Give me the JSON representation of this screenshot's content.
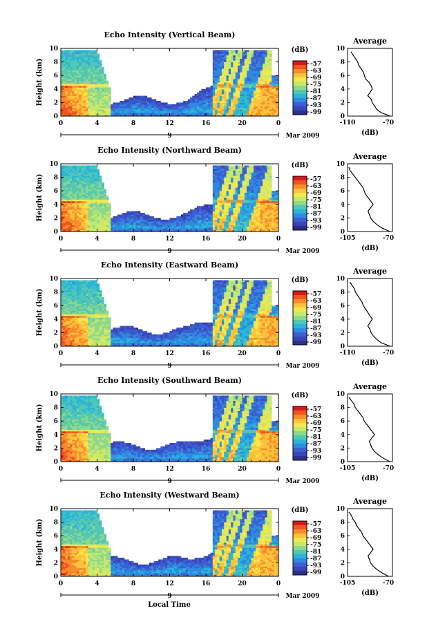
{
  "figure": {
    "xlabel": "Local Time",
    "date_label": "Mar 2009",
    "ylabel": "Height (km)",
    "colorbar_unit": "(dB)",
    "colorbar_ticks": [
      "-57",
      "-63",
      "-69",
      "-75",
      "-81",
      "-87",
      "-93",
      "-99"
    ],
    "avg_title": "Average",
    "avg_xlabel": "(dB)",
    "time_ticks": [
      "0",
      "4",
      "8",
      "12",
      "16",
      "20",
      "0"
    ],
    "height_ticks": [
      "0",
      "2",
      "4",
      "6",
      "8",
      "10"
    ],
    "day_tick": "9"
  },
  "chart_data": [
    {
      "type": "heatmap",
      "title": "Echo Intensity (Vertical Beam)",
      "xlabel": "Local Time",
      "ylabel": "Height (km)",
      "xlim": [
        0,
        24
      ],
      "ylim": [
        0,
        10
      ],
      "colorbar": {
        "label": "(dB)",
        "range": [
          -99,
          -57
        ]
      },
      "avg_profile": {
        "title": "Average",
        "xlabel": "(dB)",
        "xlim": [
          -110,
          -70
        ],
        "xticks": [
          "-110",
          "-70"
        ],
        "height": [
          0,
          0.5,
          1,
          1.5,
          2,
          2.5,
          3,
          3.5,
          4,
          4.5,
          5,
          5.5,
          6,
          6.5,
          7,
          7.5,
          8,
          8.5,
          9,
          9.5
        ],
        "value": [
          -72,
          -80,
          -84,
          -86,
          -88,
          -89,
          -92,
          -90,
          -88,
          -89,
          -91,
          -94,
          -95,
          -96,
          -98,
          -100,
          -101,
          -103,
          -105,
          -107
        ]
      }
    },
    {
      "type": "heatmap",
      "title": "Echo Intensity (Northward Beam)",
      "xlabel": "Local Time",
      "ylabel": "Height (km)",
      "xlim": [
        0,
        24
      ],
      "ylim": [
        0,
        10
      ],
      "colorbar": {
        "label": "(dB)",
        "range": [
          -99,
          -57
        ]
      },
      "avg_profile": {
        "title": "Average",
        "xlabel": "(dB)",
        "xlim": [
          -105,
          -70
        ],
        "xticks": [
          "-105",
          "-70"
        ],
        "height": [
          0,
          0.5,
          1,
          1.5,
          2,
          2.5,
          3,
          3.5,
          4,
          4.5,
          5,
          5.5,
          6,
          6.5,
          7,
          7.5,
          8,
          8.5,
          9,
          9.5
        ],
        "value": [
          -72,
          -78,
          -82,
          -85,
          -87,
          -88,
          -89,
          -87,
          -85,
          -87,
          -89,
          -91,
          -92,
          -93,
          -95,
          -97,
          -99,
          -101,
          -103,
          -104
        ]
      }
    },
    {
      "type": "heatmap",
      "title": "Echo Intensity (Eastward Beam)",
      "xlabel": "Local Time",
      "ylabel": "Height (km)",
      "xlim": [
        0,
        24
      ],
      "ylim": [
        0,
        10
      ],
      "colorbar": {
        "label": "(dB)",
        "range": [
          -99,
          -57
        ]
      },
      "avg_profile": {
        "title": "Average",
        "xlabel": "(dB)",
        "xlim": [
          -110,
          -70
        ],
        "xticks": [
          "-110",
          "-70"
        ],
        "height": [
          0,
          0.5,
          1,
          1.5,
          2,
          2.5,
          3,
          3.5,
          4,
          4.5,
          5,
          5.5,
          6,
          6.5,
          7,
          7.5,
          8,
          8.5,
          9,
          9.5
        ],
        "value": [
          -72,
          -80,
          -84,
          -87,
          -89,
          -90,
          -92,
          -90,
          -88,
          -90,
          -92,
          -94,
          -96,
          -97,
          -99,
          -101,
          -103,
          -104,
          -106,
          -108
        ]
      }
    },
    {
      "type": "heatmap",
      "title": "Echo Intensity (Southward Beam)",
      "xlabel": "Local Time",
      "ylabel": "Height (km)",
      "xlim": [
        0,
        24
      ],
      "ylim": [
        0,
        10
      ],
      "colorbar": {
        "label": "(dB)",
        "range": [
          -99,
          -57
        ]
      },
      "avg_profile": {
        "title": "Average",
        "xlabel": "(dB)",
        "xlim": [
          -105,
          -70
        ],
        "xticks": [
          "-105",
          "-70"
        ],
        "height": [
          0,
          0.5,
          1,
          1.5,
          2,
          2.5,
          3,
          3.5,
          4,
          4.5,
          5,
          5.5,
          6,
          6.5,
          7,
          7.5,
          8,
          8.5,
          9,
          9.5
        ],
        "value": [
          -72,
          -77,
          -81,
          -84,
          -86,
          -87,
          -88,
          -86,
          -84,
          -86,
          -88,
          -90,
          -92,
          -93,
          -95,
          -97,
          -99,
          -100,
          -102,
          -104
        ]
      }
    },
    {
      "type": "heatmap",
      "title": "Echo Intensity (Westward Beam)",
      "xlabel": "Local Time",
      "ylabel": "Height (km)",
      "xlim": [
        0,
        24
      ],
      "ylim": [
        0,
        10
      ],
      "colorbar": {
        "label": "(dB)",
        "range": [
          -99,
          -57
        ]
      },
      "avg_profile": {
        "title": "Average",
        "xlabel": "(dB)",
        "xlim": [
          -105,
          -70
        ],
        "xticks": [
          "-105",
          "-70"
        ],
        "height": [
          0,
          0.5,
          1,
          1.5,
          2,
          2.5,
          3,
          3.5,
          4,
          4.5,
          5,
          5.5,
          6,
          6.5,
          7,
          7.5,
          8,
          8.5,
          9,
          9.5
        ],
        "value": [
          -73,
          -78,
          -82,
          -85,
          -87,
          -88,
          -89,
          -87,
          -85,
          -87,
          -89,
          -91,
          -93,
          -94,
          -96,
          -98,
          -99,
          -101,
          -102,
          -104
        ]
      }
    }
  ]
}
